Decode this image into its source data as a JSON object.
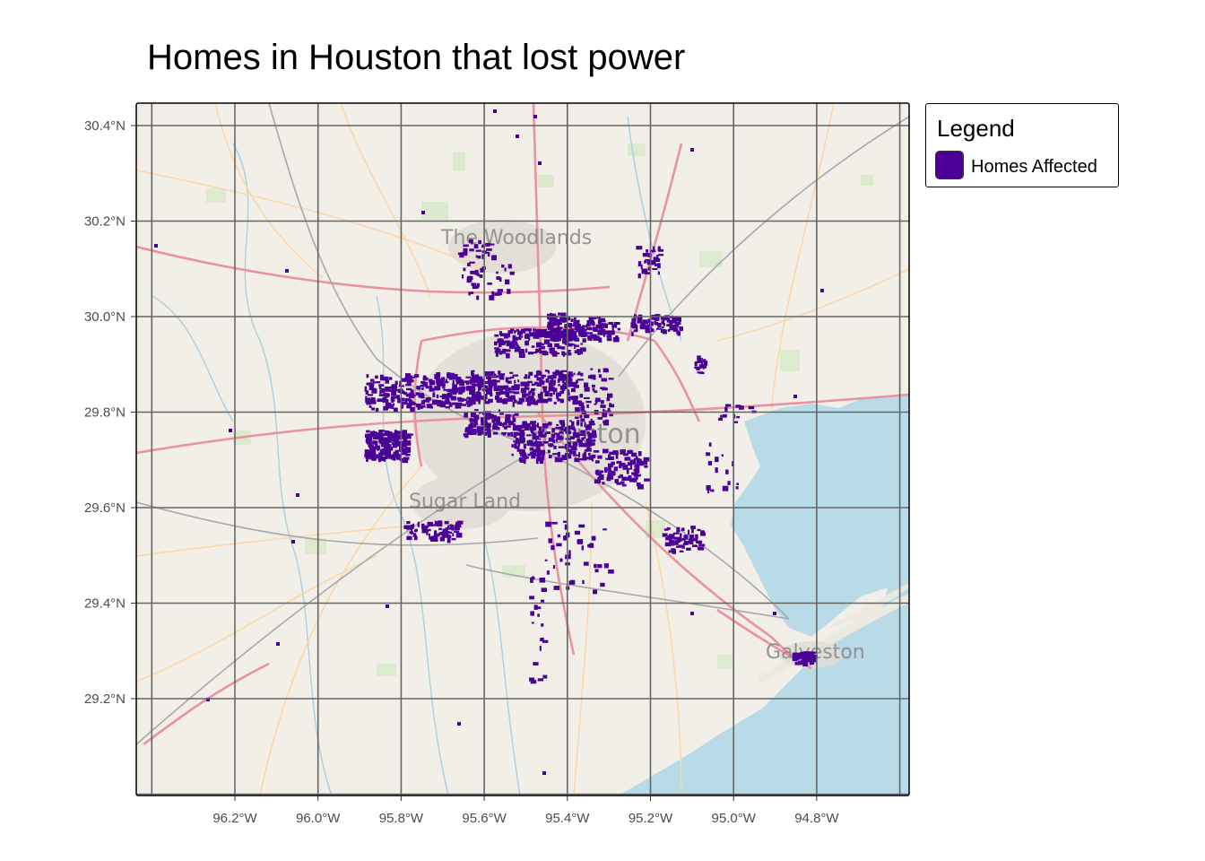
{
  "title": "Homes in Houston that lost power",
  "legend": {
    "title": "Legend",
    "items": [
      {
        "label": "Homes Affected",
        "color": "#4b0096"
      }
    ]
  },
  "map": {
    "base_layer": "street basemap",
    "colors": {
      "land": "#f2efe9",
      "water": "#b8dbe7",
      "motorway": "#e892a2",
      "primary": "#fcd6a4",
      "outage": "#4b0096",
      "grid": "#666666"
    },
    "place_labels": [
      "The Woodlands",
      "Houston",
      "Sugar Land",
      "Galveston"
    ],
    "x_ticks": [
      {
        "value": -96.2,
        "label": "96.2°W"
      },
      {
        "value": -96.0,
        "label": "96.0°W"
      },
      {
        "value": -95.8,
        "label": "95.8°W"
      },
      {
        "value": -95.6,
        "label": "95.6°W"
      },
      {
        "value": -95.4,
        "label": "95.4°W"
      },
      {
        "value": -95.2,
        "label": "95.2°W"
      },
      {
        "value": -95.0,
        "label": "95.0°W"
      },
      {
        "value": -94.8,
        "label": "94.8°W"
      }
    ],
    "y_ticks": [
      {
        "value": 30.4,
        "label": "30.4°N"
      },
      {
        "value": 30.2,
        "label": "30.2°N"
      },
      {
        "value": 30.0,
        "label": "30.0°N"
      },
      {
        "value": 29.8,
        "label": "29.8°N"
      },
      {
        "value": 29.6,
        "label": "29.6°N"
      },
      {
        "value": 29.4,
        "label": "29.4°N"
      },
      {
        "value": 29.2,
        "label": "29.2°N"
      }
    ]
  }
}
